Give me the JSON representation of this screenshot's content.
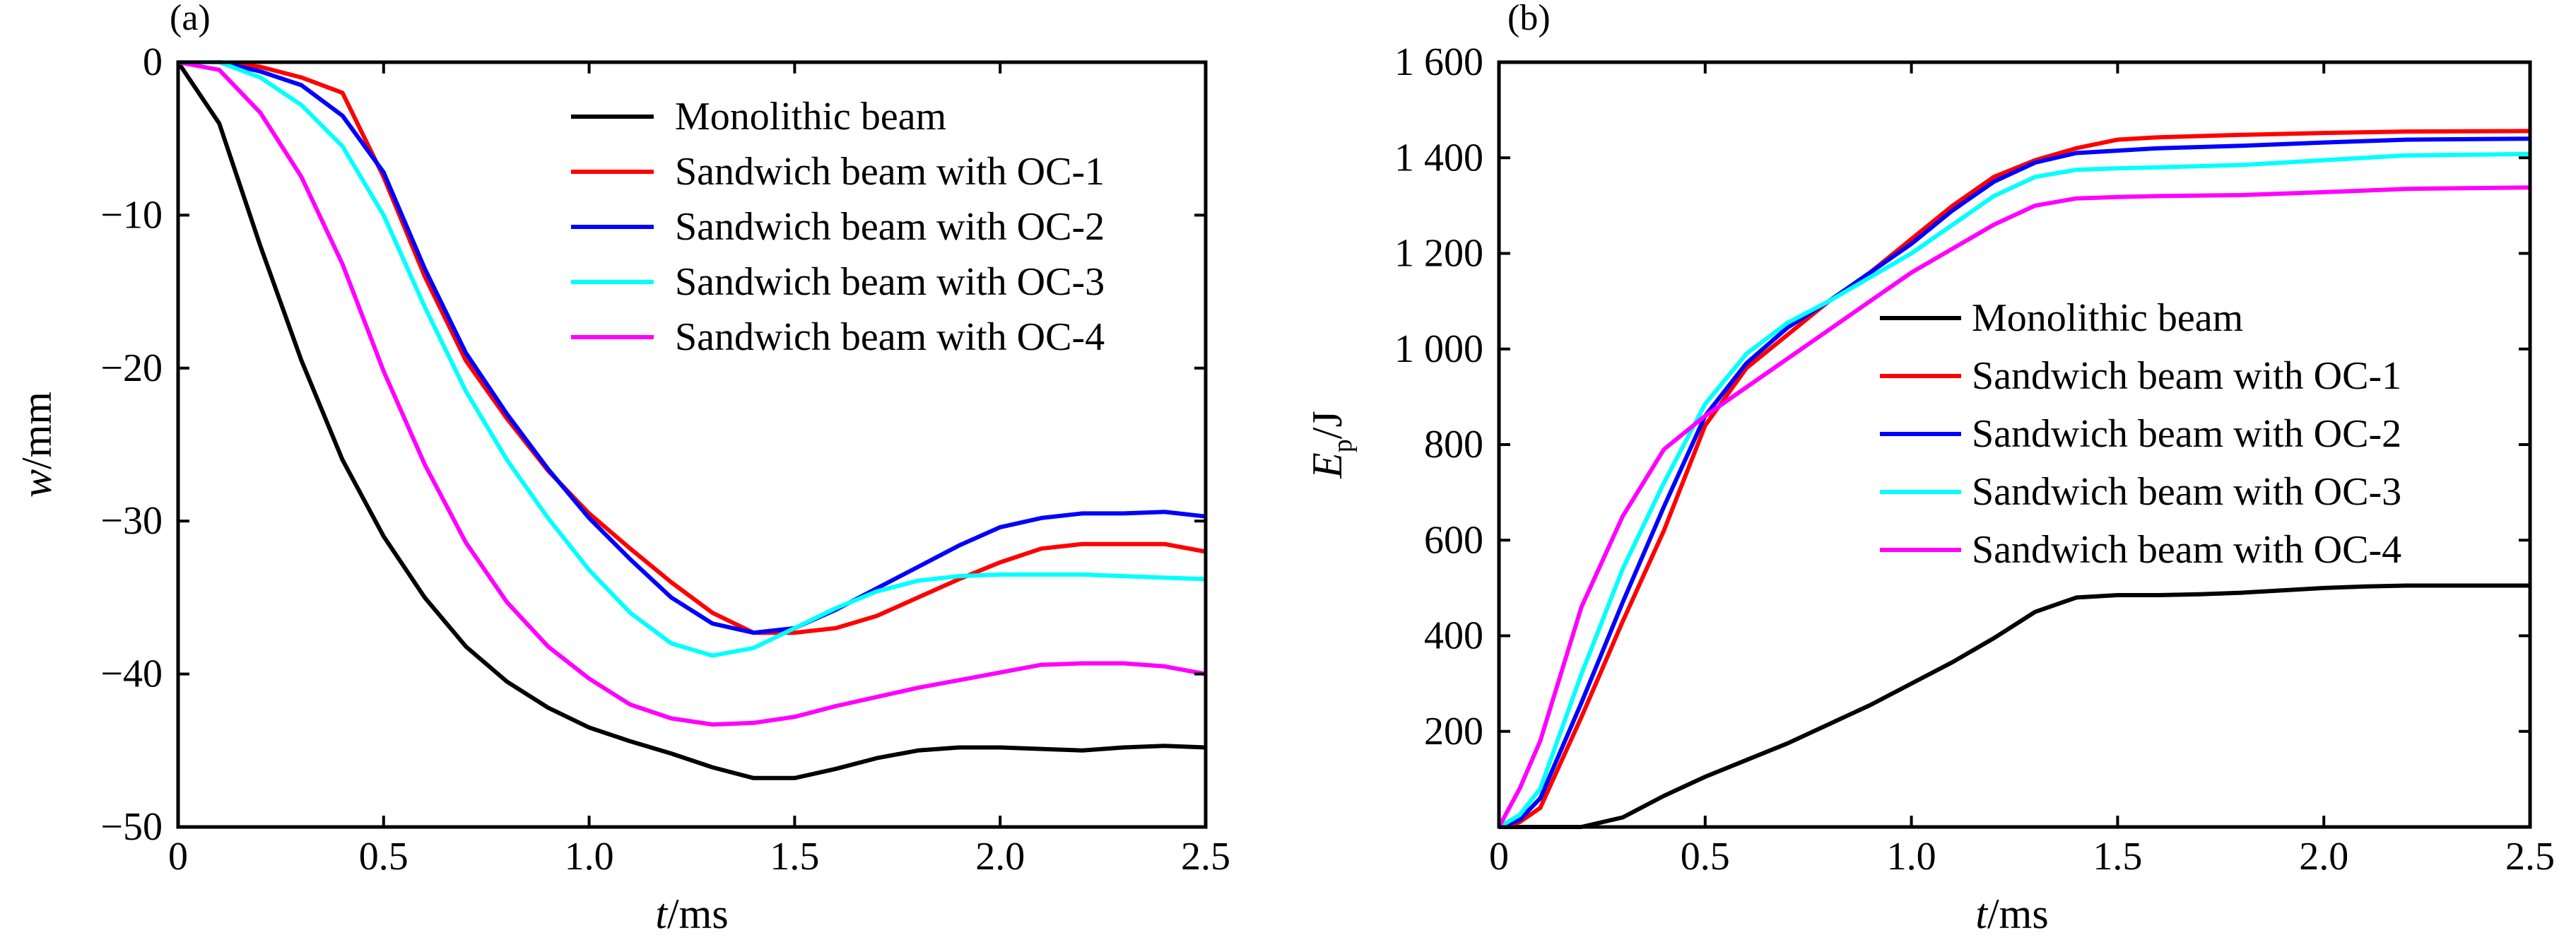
{
  "chart_data": [
    {
      "panel_label": "(a)",
      "type": "line",
      "xlabel_var": "t",
      "xlabel_unit": "/ms",
      "ylabel_var": "w",
      "ylabel_unit": "/mm",
      "xlim": [
        0,
        2.5
      ],
      "ylim": [
        -50,
        0
      ],
      "xticks": [
        0,
        0.5,
        1.0,
        1.5,
        2.0,
        2.5
      ],
      "xtick_labels": [
        "0",
        "0.5",
        "1.0",
        "1.5",
        "2.0",
        "2.5"
      ],
      "yticks": [
        0,
        -10,
        -20,
        -30,
        -40,
        -50
      ],
      "ytick_labels": [
        "0",
        "−10",
        "−20",
        "−30",
        "−40",
        "−50"
      ],
      "legend_position": "top-right",
      "series": [
        {
          "name": "Monolithic beam",
          "color": "#000000",
          "x": [
            0,
            0.1,
            0.2,
            0.3,
            0.4,
            0.5,
            0.6,
            0.7,
            0.8,
            0.9,
            1.0,
            1.1,
            1.2,
            1.3,
            1.4,
            1.5,
            1.6,
            1.7,
            1.8,
            1.9,
            2.0,
            2.1,
            2.2,
            2.3,
            2.4,
            2.5
          ],
          "y": [
            0,
            -4,
            -12,
            -19.5,
            -26,
            -31,
            -35,
            -38.2,
            -40.5,
            -42.2,
            -43.5,
            -44.4,
            -45.2,
            -46.1,
            -46.8,
            -46.8,
            -46.2,
            -45.5,
            -45,
            -44.8,
            -44.8,
            -44.9,
            -45,
            -44.8,
            -44.7,
            -44.8
          ]
        },
        {
          "name": "Sandwich beam  with OC-1",
          "color": "#ff0000",
          "x": [
            0,
            0.1,
            0.2,
            0.3,
            0.4,
            0.5,
            0.6,
            0.7,
            0.8,
            0.9,
            1.0,
            1.1,
            1.2,
            1.3,
            1.4,
            1.5,
            1.6,
            1.7,
            1.8,
            1.9,
            2.0,
            2.1,
            2.2,
            2.3,
            2.4,
            2.5
          ],
          "y": [
            0,
            0,
            -0.3,
            -1,
            -2,
            -7.5,
            -14,
            -19.5,
            -23.3,
            -26.7,
            -29.5,
            -31.8,
            -34,
            -36,
            -37.3,
            -37.3,
            -37,
            -36.2,
            -35,
            -33.8,
            -32.7,
            -31.8,
            -31.5,
            -31.5,
            -31.5,
            -32
          ]
        },
        {
          "name": "Sandwich beam  with OC-2",
          "color": "#0000ff",
          "x": [
            0,
            0.1,
            0.2,
            0.3,
            0.4,
            0.5,
            0.6,
            0.7,
            0.8,
            0.9,
            1.0,
            1.1,
            1.2,
            1.3,
            1.4,
            1.5,
            1.6,
            1.7,
            1.8,
            1.9,
            2.0,
            2.1,
            2.2,
            2.3,
            2.4,
            2.5
          ],
          "y": [
            0,
            0,
            -0.6,
            -1.5,
            -3.5,
            -7.2,
            -13.5,
            -19,
            -23,
            -26.6,
            -29.8,
            -32.5,
            -35,
            -36.7,
            -37.3,
            -37,
            -35.8,
            -34.4,
            -33,
            -31.6,
            -30.4,
            -29.8,
            -29.5,
            -29.5,
            -29.4,
            -29.7
          ]
        },
        {
          "name": "Sandwich beam  with OC-3",
          "color": "#00ffff",
          "x": [
            0,
            0.1,
            0.2,
            0.3,
            0.4,
            0.5,
            0.6,
            0.7,
            0.8,
            0.9,
            1.0,
            1.1,
            1.2,
            1.3,
            1.4,
            1.5,
            1.6,
            1.7,
            1.8,
            1.9,
            2.0,
            2.1,
            2.2,
            2.3,
            2.4,
            2.5
          ],
          "y": [
            0,
            0,
            -1,
            -2.8,
            -5.5,
            -10,
            -16,
            -21.5,
            -26,
            -29.8,
            -33.2,
            -36,
            -38,
            -38.8,
            -38.3,
            -37,
            -35.7,
            -34.6,
            -33.9,
            -33.6,
            -33.5,
            -33.5,
            -33.5,
            -33.6,
            -33.7,
            -33.8
          ]
        },
        {
          "name": "Sandwich beam  with OC-4",
          "color": "#ff00ff",
          "x": [
            0,
            0.1,
            0.2,
            0.3,
            0.4,
            0.5,
            0.6,
            0.7,
            0.8,
            0.9,
            1.0,
            1.1,
            1.2,
            1.3,
            1.4,
            1.5,
            1.6,
            1.7,
            1.8,
            1.9,
            2.0,
            2.1,
            2.2,
            2.3,
            2.4,
            2.5
          ],
          "y": [
            0,
            -0.5,
            -3.3,
            -7.5,
            -13.2,
            -20.2,
            -26.3,
            -31.4,
            -35.3,
            -38.2,
            -40.3,
            -42,
            -42.9,
            -43.3,
            -43.2,
            -42.8,
            -42.1,
            -41.5,
            -40.9,
            -40.4,
            -39.9,
            -39.4,
            -39.3,
            -39.3,
            -39.5,
            -40
          ]
        }
      ]
    },
    {
      "panel_label": "(b)",
      "type": "line",
      "xlabel_var": "t",
      "xlabel_unit": "/ms",
      "ylabel_var": "E",
      "ylabel_sub": "p",
      "ylabel_unit": "/J",
      "xlim": [
        0,
        2.5
      ],
      "ylim": [
        0,
        1600
      ],
      "xticks": [
        0,
        0.5,
        1.0,
        1.5,
        2.0,
        2.5
      ],
      "xtick_labels": [
        "0",
        "0.5",
        "1.0",
        "1.5",
        "2.0",
        "2.5"
      ],
      "yticks": [
        200,
        400,
        600,
        800,
        1000,
        1200,
        1400,
        1600
      ],
      "ytick_labels": [
        "200",
        "400",
        "600",
        "800",
        "1 000",
        "1 200",
        "1 400",
        "1 600"
      ],
      "legend_position": "center-right",
      "series": [
        {
          "name": "Monolithic beam",
          "color": "#000000",
          "x": [
            0,
            0.1,
            0.2,
            0.3,
            0.4,
            0.5,
            0.6,
            0.7,
            0.8,
            0.9,
            1.0,
            1.1,
            1.2,
            1.3,
            1.4,
            1.5,
            1.6,
            1.7,
            1.8,
            1.9,
            2.0,
            2.1,
            2.2,
            2.3,
            2.4,
            2.5
          ],
          "y": [
            0,
            0,
            0,
            20,
            65,
            105,
            140,
            175,
            215,
            255,
            300,
            345,
            395,
            450,
            480,
            485,
            485,
            487,
            490,
            495,
            500,
            503,
            505,
            505,
            505,
            505
          ]
        },
        {
          "name": "Sandwich beam  with OC-1",
          "color": "#ff0000",
          "x": [
            0,
            0.05,
            0.1,
            0.2,
            0.3,
            0.4,
            0.5,
            0.6,
            0.7,
            0.8,
            0.9,
            1.0,
            1.1,
            1.2,
            1.3,
            1.4,
            1.5,
            1.6,
            1.8,
            2.0,
            2.2,
            2.5
          ],
          "y": [
            0,
            10,
            40,
            230,
            430,
            620,
            840,
            960,
            1030,
            1100,
            1160,
            1230,
            1300,
            1360,
            1395,
            1420,
            1438,
            1443,
            1448,
            1452,
            1455,
            1456
          ]
        },
        {
          "name": "Sandwich beam  with OC-2",
          "color": "#0000ff",
          "x": [
            0,
            0.05,
            0.1,
            0.2,
            0.3,
            0.4,
            0.5,
            0.6,
            0.7,
            0.8,
            0.9,
            1.0,
            1.1,
            1.2,
            1.3,
            1.4,
            1.5,
            1.6,
            1.8,
            2.0,
            2.2,
            2.5
          ],
          "y": [
            0,
            15,
            60,
            260,
            470,
            670,
            860,
            970,
            1045,
            1100,
            1160,
            1220,
            1290,
            1350,
            1390,
            1410,
            1415,
            1420,
            1425,
            1432,
            1438,
            1440
          ]
        },
        {
          "name": "Sandwich beam  with OC-3",
          "color": "#00ffff",
          "x": [
            0,
            0.05,
            0.1,
            0.2,
            0.3,
            0.4,
            0.5,
            0.6,
            0.7,
            0.8,
            0.9,
            1.0,
            1.1,
            1.2,
            1.3,
            1.4,
            1.5,
            1.6,
            1.8,
            2.0,
            2.2,
            2.5
          ],
          "y": [
            0,
            25,
            80,
            320,
            540,
            720,
            885,
            990,
            1055,
            1100,
            1150,
            1200,
            1260,
            1320,
            1360,
            1375,
            1378,
            1380,
            1385,
            1395,
            1405,
            1408
          ]
        },
        {
          "name": "Sandwich beam  with OC-4",
          "color": "#ff00ff",
          "x": [
            0,
            0.05,
            0.1,
            0.2,
            0.3,
            0.4,
            0.5,
            0.6,
            0.7,
            0.8,
            0.9,
            1.0,
            1.1,
            1.2,
            1.3,
            1.4,
            1.5,
            1.6,
            1.8,
            2.0,
            2.2,
            2.5
          ],
          "y": [
            0,
            80,
            180,
            460,
            650,
            790,
            860,
            920,
            980,
            1040,
            1100,
            1160,
            1210,
            1260,
            1300,
            1315,
            1318,
            1320,
            1322,
            1328,
            1335,
            1338
          ]
        }
      ]
    }
  ]
}
